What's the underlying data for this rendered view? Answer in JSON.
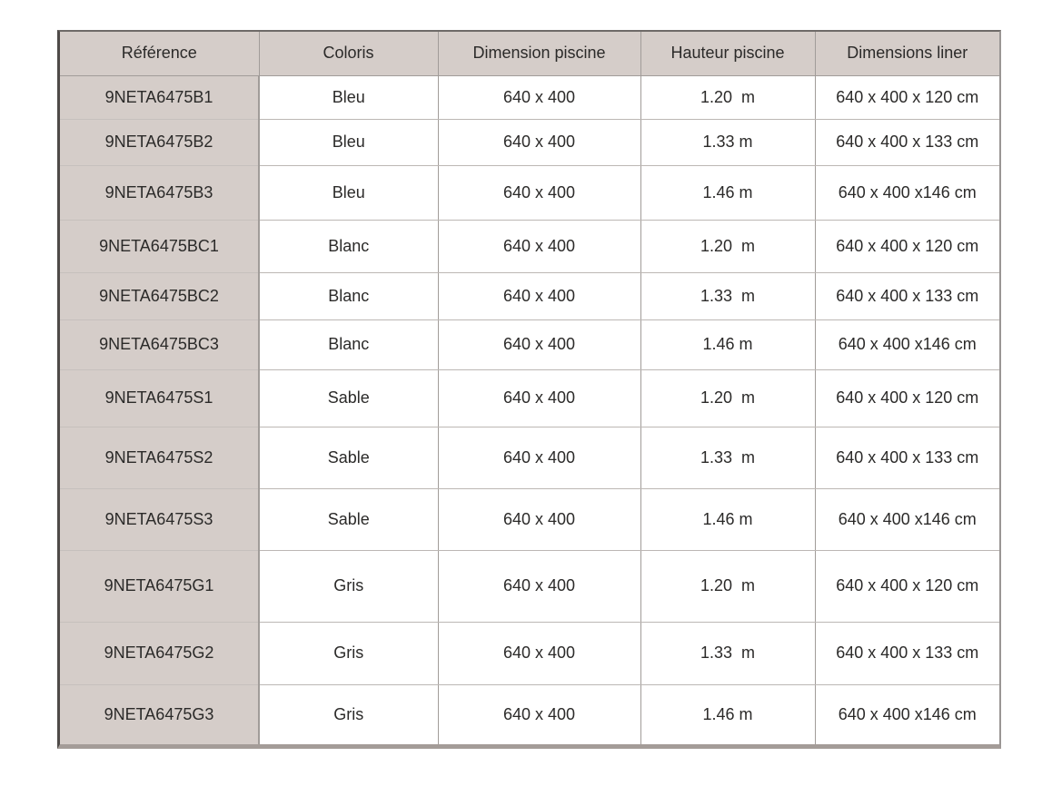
{
  "theme": {
    "header_bg": "#d5cdc9",
    "body_bg": "#ffffff",
    "text_color": "#2b2a29",
    "grid_line": "#bcb7b4",
    "column_line": "#a19c99",
    "outer_top": "#6e6a68",
    "outer_left": "#4e4a48",
    "outer_right": "#9a9694",
    "outer_bottom": "#a49c98"
  },
  "table": {
    "columns": [
      {
        "key": "reference",
        "label": "Référence"
      },
      {
        "key": "coloris",
        "label": "Coloris"
      },
      {
        "key": "dimension_piscine",
        "label": "Dimension piscine"
      },
      {
        "key": "hauteur_piscine",
        "label": "Hauteur piscine"
      },
      {
        "key": "dimensions_liner",
        "label": "Dimensions liner"
      }
    ],
    "rows": [
      {
        "reference": "9NETA6475B1",
        "coloris": "Bleu",
        "dimension_piscine": "640 x 400",
        "hauteur_piscine": "1.20  m",
        "dimensions_liner": "640 x 400 x 120 cm"
      },
      {
        "reference": "9NETA6475B2",
        "coloris": "Bleu",
        "dimension_piscine": "640 x 400",
        "hauteur_piscine": "1.33 m",
        "dimensions_liner": "640 x 400 x 133 cm"
      },
      {
        "reference": "9NETA6475B3",
        "coloris": "Bleu",
        "dimension_piscine": "640 x 400",
        "hauteur_piscine": "1.46 m",
        "dimensions_liner": "640 x 400 x146 cm"
      },
      {
        "reference": "9NETA6475BC1",
        "coloris": "Blanc",
        "dimension_piscine": "640 x 400",
        "hauteur_piscine": "1.20  m",
        "dimensions_liner": "640 x 400 x 120 cm"
      },
      {
        "reference": "9NETA6475BC2",
        "coloris": "Blanc",
        "dimension_piscine": "640 x 400",
        "hauteur_piscine": "1.33  m",
        "dimensions_liner": "640 x 400 x 133 cm"
      },
      {
        "reference": "9NETA6475BC3",
        "coloris": "Blanc",
        "dimension_piscine": "640 x 400",
        "hauteur_piscine": "1.46 m",
        "dimensions_liner": "640 x 400 x146 cm"
      },
      {
        "reference": "9NETA6475S1",
        "coloris": "Sable",
        "dimension_piscine": "640 x 400",
        "hauteur_piscine": "1.20  m",
        "dimensions_liner": "640 x 400 x 120 cm"
      },
      {
        "reference": "9NETA6475S2",
        "coloris": "Sable",
        "dimension_piscine": "640 x 400",
        "hauteur_piscine": "1.33  m",
        "dimensions_liner": "640 x 400 x 133 cm"
      },
      {
        "reference": "9NETA6475S3",
        "coloris": "Sable",
        "dimension_piscine": "640 x 400",
        "hauteur_piscine": "1.46 m",
        "dimensions_liner": "640 x 400 x146 cm"
      },
      {
        "reference": "9NETA6475G1",
        "coloris": "Gris",
        "dimension_piscine": "640 x 400",
        "hauteur_piscine": "1.20  m",
        "dimensions_liner": "640 x 400 x 120 cm"
      },
      {
        "reference": "9NETA6475G2",
        "coloris": "Gris",
        "dimension_piscine": "640 x 400",
        "hauteur_piscine": "1.33  m",
        "dimensions_liner": "640 x 400 x 133 cm"
      },
      {
        "reference": "9NETA6475G3",
        "coloris": "Gris",
        "dimension_piscine": "640 x 400",
        "hauteur_piscine": "1.46 m",
        "dimensions_liner": "640 x 400 x146 cm"
      }
    ]
  }
}
